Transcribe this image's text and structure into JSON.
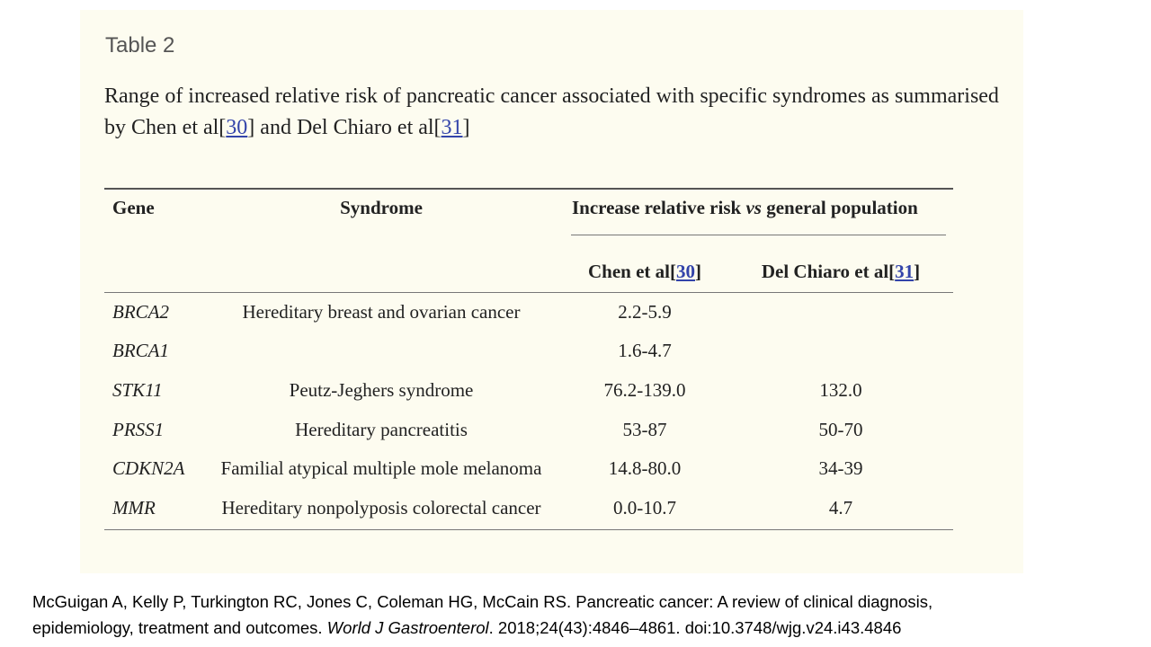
{
  "table_label": "Table 2",
  "caption": {
    "text_before": "Range of increased relative risk of pancreatic cancer associated with specific syndromes as summarised by Chen et al[",
    "ref1": "30",
    "text_middle": "] and Del Chiaro et al[",
    "ref2": "31",
    "text_after": "]"
  },
  "table": {
    "headers": {
      "gene": "Gene",
      "syndrome": "Syndrome",
      "group": "Increase relative risk ",
      "group_vs": "vs",
      "group_tail": " general population",
      "chen_prefix": "Chen et al[",
      "chen_ref": "30",
      "chen_suffix": "]",
      "delchiaro_prefix": "Del Chiaro et al[",
      "delchiaro_ref": "31",
      "delchiaro_suffix": "]"
    },
    "rows": [
      {
        "gene": "BRCA2",
        "syndrome": "Hereditary breast and ovarian cancer",
        "chen": "2.2-5.9",
        "delchiaro": ""
      },
      {
        "gene": "BRCA1",
        "syndrome": "",
        "chen": "1.6-4.7",
        "delchiaro": ""
      },
      {
        "gene": "STK11",
        "syndrome": "Peutz-Jeghers syndrome",
        "chen": "76.2-139.0",
        "delchiaro": "132.0"
      },
      {
        "gene": "PRSS1",
        "syndrome": "Hereditary pancreatitis",
        "chen": "53-87",
        "delchiaro": "50-70"
      },
      {
        "gene": "CDKN2A",
        "syndrome": "Familial atypical multiple mole melanoma",
        "chen": "14.8-80.0",
        "delchiaro": "34-39"
      },
      {
        "gene": "MMR",
        "syndrome": "Hereditary nonpolyposis colorectal cancer",
        "chen": "0.0-10.7",
        "delchiaro": "4.7"
      }
    ]
  },
  "footer": {
    "line1": "McGuigan A, Kelly P, Turkington RC, Jones C, Coleman HG, McCain RS. Pancreatic cancer: A review of clinical diagnosis,",
    "line2_before": "epidemiology, treatment and outcomes. ",
    "journal": "World J Gastroenterol",
    "line2_after": ". 2018;24(43):4846–4861.  doi:10.3748/wjg.v24.i43.4846"
  },
  "colors": {
    "panel_background": "#fdfcf0",
    "link": "#3344aa"
  }
}
